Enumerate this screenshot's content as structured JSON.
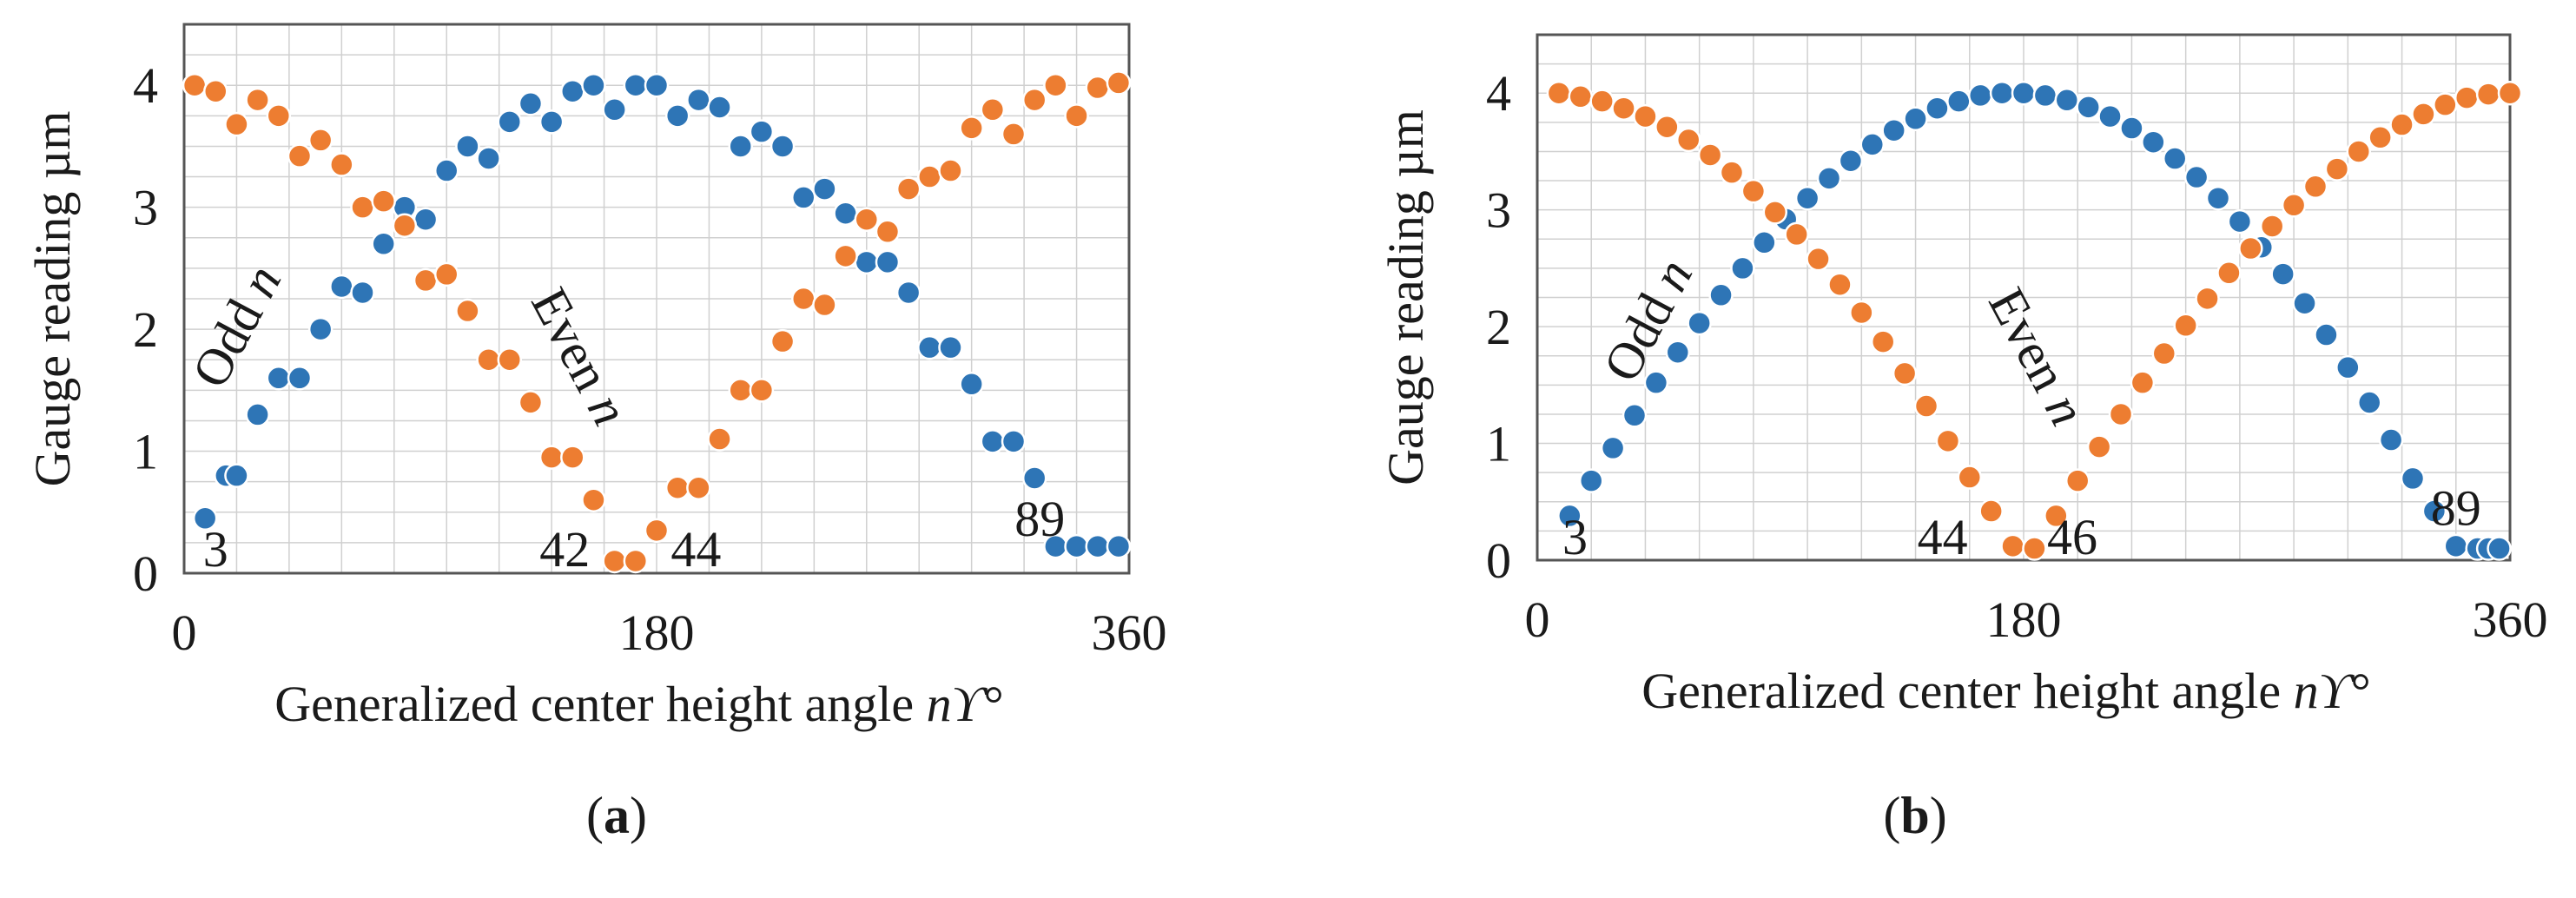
{
  "figure": {
    "colors": {
      "odd": "#2e75b6",
      "even": "#ed7d31",
      "frame": "#000000",
      "grid": "#d0d0d0",
      "text": "#1a1a1a"
    }
  },
  "chart_data": [
    {
      "type": "scatter",
      "panel": "a",
      "caption": "(a)",
      "caption_letter": "a",
      "xlabel": "Generalized center height angle nϒ°",
      "xlabel_main": "Generalized center height angle ",
      "xlabel_var": "nϒ",
      "xlabel_unit": "°",
      "ylabel": "Gauge reading µm",
      "xlim": [
        0,
        360
      ],
      "ylim": [
        0,
        4.5
      ],
      "xticks": [
        "0",
        "180",
        "360"
      ],
      "yticks": [
        "0",
        "1",
        "2",
        "3",
        "4"
      ],
      "grid": true,
      "annotations": {
        "odd_label": "Odd n",
        "even_label": "Even n",
        "marks": [
          {
            "text": "3",
            "x": 12,
            "y": 0.2
          },
          {
            "text": "42",
            "x": 145,
            "y": 0.2
          },
          {
            "text": "44",
            "x": 195,
            "y": 0.2
          },
          {
            "text": "89",
            "x": 326,
            "y": 0.45
          }
        ]
      },
      "series": [
        {
          "name": "Odd n",
          "color": "#2e75b6",
          "x": [
            8,
            16,
            20,
            28,
            36,
            44,
            52,
            60,
            68,
            76,
            84,
            92,
            100,
            108,
            116,
            124,
            132,
            140,
            148,
            156,
            164,
            172,
            180,
            188,
            196,
            204,
            212,
            220,
            228,
            236,
            244,
            252,
            260,
            268,
            276,
            284,
            292,
            300,
            308,
            316,
            324,
            332,
            340,
            348,
            356
          ],
          "y": [
            0.45,
            0.8,
            0.8,
            1.3,
            1.6,
            1.6,
            2.0,
            2.35,
            2.3,
            2.7,
            3.0,
            2.9,
            3.3,
            3.5,
            3.4,
            3.7,
            3.85,
            3.7,
            3.95,
            4.0,
            3.8,
            4.0,
            4.0,
            3.75,
            3.88,
            3.82,
            3.5,
            3.62,
            3.5,
            3.08,
            3.15,
            2.95,
            2.55,
            2.55,
            2.3,
            1.85,
            1.85,
            1.55,
            1.08,
            1.08,
            0.78,
            0.22,
            0.22,
            0.22,
            0.22
          ]
        },
        {
          "name": "Even n",
          "color": "#ed7d31",
          "x": [
            4,
            12,
            20,
            28,
            36,
            44,
            52,
            60,
            68,
            76,
            84,
            92,
            100,
            108,
            116,
            124,
            132,
            140,
            148,
            156,
            164,
            172,
            180,
            188,
            196,
            204,
            212,
            220,
            228,
            236,
            244,
            252,
            260,
            268,
            276,
            284,
            292,
            300,
            308,
            316,
            324,
            332,
            340,
            348,
            356
          ],
          "y": [
            4.0,
            3.95,
            3.68,
            3.88,
            3.75,
            3.42,
            3.55,
            3.35,
            3.0,
            3.05,
            2.85,
            2.4,
            2.45,
            2.15,
            1.75,
            1.75,
            1.4,
            0.95,
            0.95,
            0.6,
            0.1,
            0.1,
            0.35,
            0.7,
            0.7,
            1.1,
            1.5,
            1.5,
            1.9,
            2.25,
            2.2,
            2.6,
            2.9,
            2.8,
            3.15,
            3.25,
            3.3,
            3.65,
            3.8,
            3.6,
            3.88,
            4.0,
            3.75,
            3.98,
            4.02
          ]
        }
      ]
    },
    {
      "type": "scatter",
      "panel": "b",
      "caption": "(b)",
      "caption_letter": "b",
      "xlabel": "Generalized center height angle nϒ°",
      "xlabel_main": "Generalized center height angle ",
      "xlabel_var": "nϒ",
      "xlabel_unit": "°",
      "ylabel": "Gauge reading µm",
      "xlim": [
        0,
        360
      ],
      "ylim": [
        0,
        4.5
      ],
      "xticks": [
        "0",
        "180",
        "360"
      ],
      "yticks": [
        "0",
        "1",
        "2",
        "3",
        "4"
      ],
      "grid": true,
      "annotations": {
        "odd_label": "Odd n",
        "even_label": "Even n",
        "marks": [
          {
            "text": "3",
            "x": 14,
            "y": 0.2
          },
          {
            "text": "44",
            "x": 150,
            "y": 0.2
          },
          {
            "text": "46",
            "x": 198,
            "y": 0.2
          },
          {
            "text": "89",
            "x": 340,
            "y": 0.45
          }
        ]
      },
      "series": [
        {
          "name": "Odd n",
          "color": "#2e75b6",
          "x": [
            12,
            20,
            28,
            36,
            44,
            52,
            60,
            68,
            76,
            84,
            92,
            100,
            108,
            116,
            124,
            132,
            140,
            148,
            156,
            164,
            172,
            180,
            188,
            196,
            204,
            212,
            220,
            228,
            236,
            244,
            252,
            260,
            268,
            276,
            284,
            292,
            300,
            308,
            316,
            324,
            332,
            340,
            348,
            352,
            356
          ],
          "y": [
            0.38,
            0.68,
            0.96,
            1.24,
            1.52,
            1.78,
            2.03,
            2.27,
            2.5,
            2.72,
            2.92,
            3.1,
            3.27,
            3.42,
            3.56,
            3.68,
            3.78,
            3.87,
            3.93,
            3.98,
            4.0,
            4.0,
            3.98,
            3.94,
            3.88,
            3.8,
            3.7,
            3.58,
            3.44,
            3.28,
            3.1,
            2.9,
            2.68,
            2.45,
            2.2,
            1.93,
            1.65,
            1.35,
            1.03,
            0.7,
            0.42,
            0.12,
            0.1,
            0.1,
            0.1
          ]
        },
        {
          "name": "Even n",
          "color": "#ed7d31",
          "x": [
            8,
            16,
            24,
            32,
            40,
            48,
            56,
            64,
            72,
            80,
            88,
            96,
            104,
            112,
            120,
            128,
            136,
            144,
            152,
            160,
            168,
            176,
            184,
            192,
            200,
            208,
            216,
            224,
            232,
            240,
            248,
            256,
            264,
            272,
            280,
            288,
            296,
            304,
            312,
            320,
            328,
            336,
            344,
            352,
            360
          ],
          "y": [
            4.0,
            3.97,
            3.93,
            3.87,
            3.8,
            3.71,
            3.6,
            3.47,
            3.32,
            3.16,
            2.98,
            2.79,
            2.58,
            2.36,
            2.12,
            1.87,
            1.6,
            1.32,
            1.02,
            0.71,
            0.42,
            0.12,
            0.1,
            0.38,
            0.68,
            0.97,
            1.25,
            1.52,
            1.77,
            2.01,
            2.24,
            2.46,
            2.67,
            2.86,
            3.04,
            3.2,
            3.35,
            3.5,
            3.62,
            3.73,
            3.82,
            3.9,
            3.96,
            3.99,
            4.0
          ]
        }
      ]
    }
  ]
}
